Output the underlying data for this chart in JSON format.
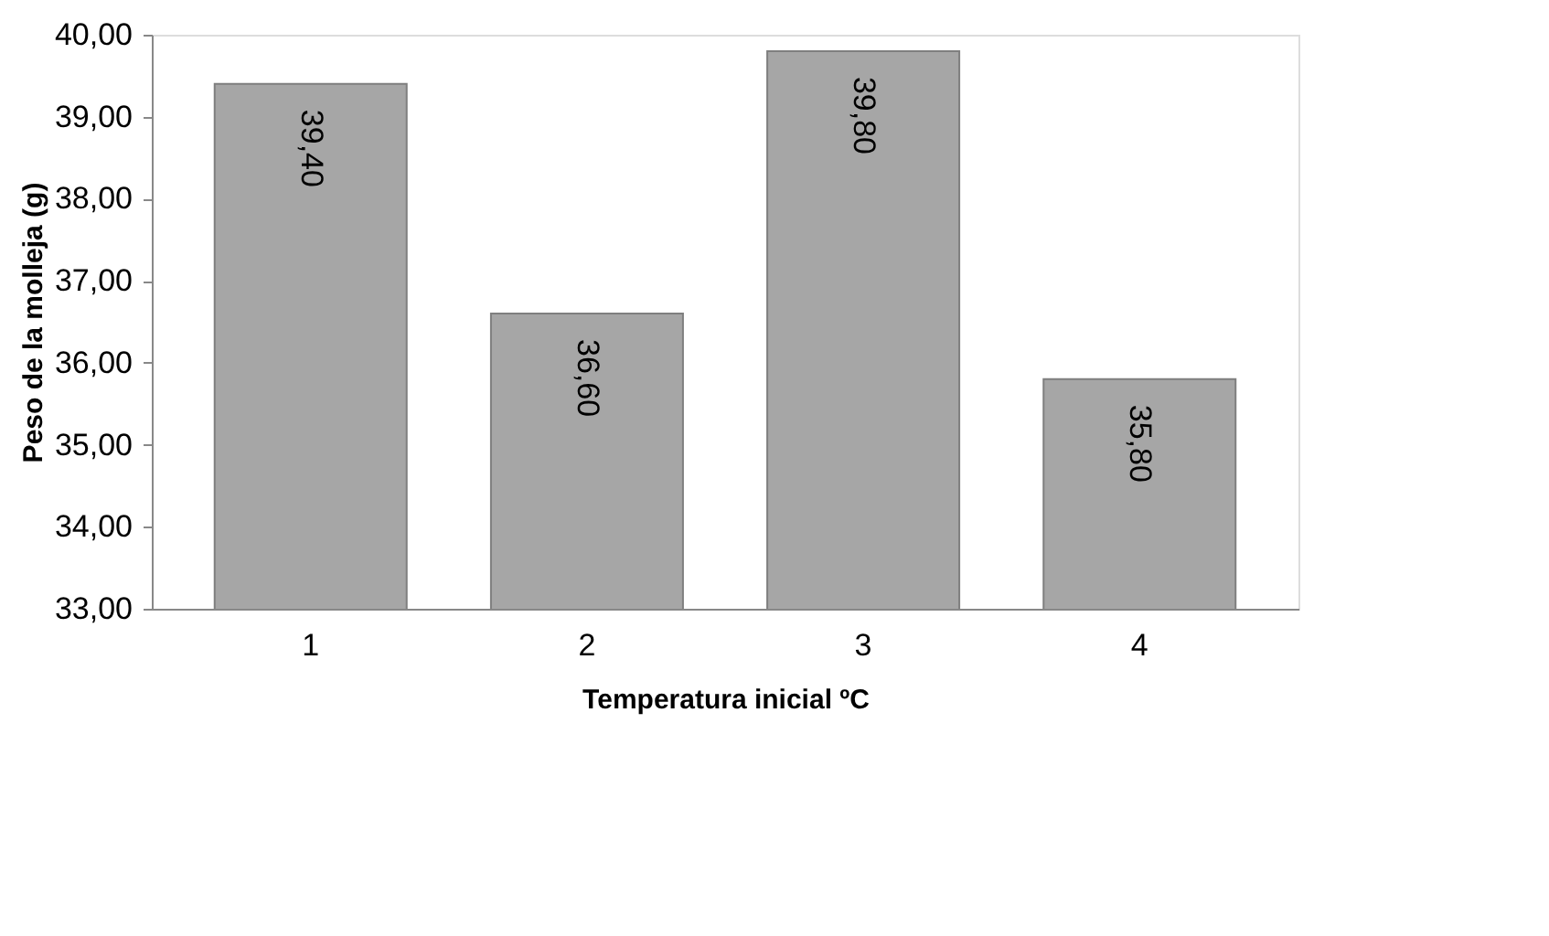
{
  "chart_data": {
    "type": "bar",
    "xlabel": "Temperatura inicial ºC",
    "ylabel": "Peso de la molleja (g)",
    "categories": [
      "1",
      "2",
      "3",
      "4"
    ],
    "values": [
      39.4,
      36.6,
      39.8,
      35.8
    ],
    "value_labels": [
      "39,40",
      "36,60",
      "39,80",
      "35,80"
    ],
    "color": "#a6a6a6",
    "ylim": [
      33,
      40
    ],
    "yticks": [
      {
        "value": 33,
        "label": "33,00"
      },
      {
        "value": 34,
        "label": "34,00"
      },
      {
        "value": 35,
        "label": "35,00"
      },
      {
        "value": 36,
        "label": "36,00"
      },
      {
        "value": 37,
        "label": "37,00"
      },
      {
        "value": 38,
        "label": "38,00"
      },
      {
        "value": 39,
        "label": "39,00"
      },
      {
        "value": 40,
        "label": "40,00"
      }
    ],
    "grid": false
  }
}
